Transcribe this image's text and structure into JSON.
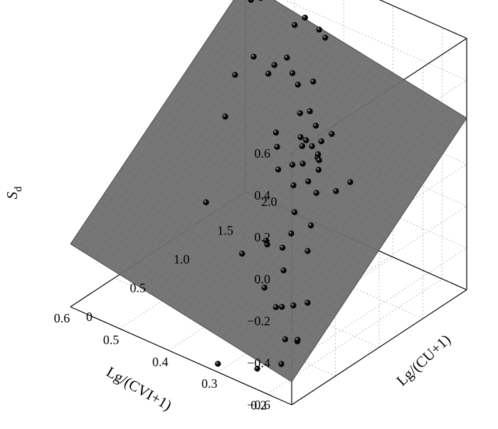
{
  "chart_data": {
    "type": "scatter",
    "subtype": "3d-scatter-with-fitted-plane",
    "xlabel": "Lg/(CVI+1)",
    "ylabel": "Lg/(CU+1)",
    "zlabel_main": "S",
    "zlabel_sub": "d",
    "xlim": [
      0.15,
      0.6
    ],
    "ylim": [
      0,
      2.0
    ],
    "zlim": [
      -0.6,
      0.6
    ],
    "x_ticks": [
      "0.2",
      "0.3",
      "0.4",
      "0.5",
      "0.6"
    ],
    "y_ticks": [
      "0",
      "0.5",
      "1.0",
      "1.5",
      "2.0"
    ],
    "z_ticks": [
      "0.6",
      "0.4",
      "0.2",
      "0.0",
      "−0.2",
      "−0.4",
      "−0.6"
    ],
    "grid": true,
    "plane_color": "#6e6e6e",
    "point_color": "#111111",
    "fit_plane": {
      "corners": [
        {
          "x": 0.15,
          "y": 0.0,
          "z": -0.49
        },
        {
          "x": 0.6,
          "y": 0.0,
          "z": -0.3
        },
        {
          "x": 0.6,
          "y": 2.0,
          "z": 0.4
        },
        {
          "x": 0.15,
          "y": 2.0,
          "z": 0.22
        }
      ]
    },
    "points": [
      {
        "x": 0.18,
        "y": 0.05,
        "z": -0.45
      },
      {
        "x": 0.16,
        "y": 0.12,
        "z": -0.34
      },
      {
        "x": 0.17,
        "y": 0.18,
        "z": -0.36
      },
      {
        "x": 0.19,
        "y": 0.15,
        "z": -0.37
      },
      {
        "x": 0.18,
        "y": 0.35,
        "z": -0.24
      },
      {
        "x": 0.2,
        "y": 0.3,
        "z": -0.26
      },
      {
        "x": 0.22,
        "y": 0.0,
        "z": -0.5
      },
      {
        "x": 0.3,
        "y": 0.0,
        "z": -0.56
      },
      {
        "x": 0.25,
        "y": 0.45,
        "z": -0.36
      },
      {
        "x": 0.28,
        "y": 0.55,
        "z": -0.42
      },
      {
        "x": 0.33,
        "y": 0.7,
        "z": -0.42
      },
      {
        "x": 0.42,
        "y": 0.95,
        "z": -0.42
      },
      {
        "x": 0.26,
        "y": 0.8,
        "z": -0.2
      },
      {
        "x": 0.28,
        "y": 0.95,
        "z": -0.14
      },
      {
        "x": 0.32,
        "y": 0.85,
        "z": -0.26
      },
      {
        "x": 0.36,
        "y": 0.9,
        "z": -0.3
      },
      {
        "x": 0.38,
        "y": 1.0,
        "z": -0.33
      },
      {
        "x": 0.3,
        "y": 0.75,
        "z": -0.32
      },
      {
        "x": 0.34,
        "y": 1.1,
        "z": -0.18
      },
      {
        "x": 0.33,
        "y": 1.2,
        "z": -0.05
      },
      {
        "x": 0.36,
        "y": 1.2,
        "z": -0.1
      },
      {
        "x": 0.38,
        "y": 1.3,
        "z": -0.05
      },
      {
        "x": 0.35,
        "y": 1.25,
        "z": 0.0
      },
      {
        "x": 0.4,
        "y": 1.25,
        "z": -0.08
      },
      {
        "x": 0.42,
        "y": 1.35,
        "z": -0.02
      },
      {
        "x": 0.44,
        "y": 1.45,
        "z": 0.0
      },
      {
        "x": 0.37,
        "y": 1.4,
        "z": 0.05
      },
      {
        "x": 0.39,
        "y": 1.45,
        "z": 0.03
      },
      {
        "x": 0.36,
        "y": 1.3,
        "z": 0.06
      },
      {
        "x": 0.34,
        "y": 1.3,
        "z": 0.08
      },
      {
        "x": 0.32,
        "y": 1.25,
        "z": 0.06
      },
      {
        "x": 0.3,
        "y": 1.15,
        "z": 0.05
      },
      {
        "x": 0.31,
        "y": 1.2,
        "z": 0.1
      },
      {
        "x": 0.33,
        "y": 1.35,
        "z": 0.1
      },
      {
        "x": 0.35,
        "y": 1.4,
        "z": 0.14
      },
      {
        "x": 0.4,
        "y": 1.5,
        "z": 0.12
      },
      {
        "x": 0.38,
        "y": 1.5,
        "z": 0.15
      },
      {
        "x": 0.3,
        "y": 1.3,
        "z": 0.18
      },
      {
        "x": 0.29,
        "y": 1.1,
        "z": 0.12
      },
      {
        "x": 0.26,
        "y": 0.9,
        "z": 0.05
      },
      {
        "x": 0.22,
        "y": 0.9,
        "z": 0.1
      },
      {
        "x": 0.2,
        "y": 0.95,
        "z": 0.15
      },
      {
        "x": 0.44,
        "y": 1.7,
        "z": 0.16
      },
      {
        "x": 0.46,
        "y": 1.75,
        "z": 0.18
      },
      {
        "x": 0.48,
        "y": 1.8,
        "z": 0.22
      },
      {
        "x": 0.5,
        "y": 1.7,
        "z": 0.15
      },
      {
        "x": 0.47,
        "y": 1.6,
        "z": 0.25
      },
      {
        "x": 0.53,
        "y": 1.7,
        "z": 0.2
      },
      {
        "x": 0.55,
        "y": 1.6,
        "z": 0.12
      },
      {
        "x": 0.42,
        "y": 1.9,
        "z": 0.35
      },
      {
        "x": 0.47,
        "y": 1.95,
        "z": 0.38
      },
      {
        "x": 0.45,
        "y": 2.0,
        "z": 0.33
      },
      {
        "x": 0.4,
        "y": 1.65,
        "z": 0.23
      },
      {
        "x": 0.5,
        "y": 2.0,
        "z": 0.3
      },
      {
        "x": 0.56,
        "y": 1.95,
        "z": 0.38
      },
      {
        "x": 0.55,
        "y": 2.0,
        "z": 0.5
      },
      {
        "x": 0.58,
        "y": 1.95,
        "z": 0.35
      },
      {
        "x": 0.57,
        "y": 1.6,
        "z": -0.1
      },
      {
        "x": 0.52,
        "y": 1.1,
        "z": -0.32
      },
      {
        "x": 0.32,
        "y": 0.95,
        "z": -0.22
      }
    ]
  }
}
